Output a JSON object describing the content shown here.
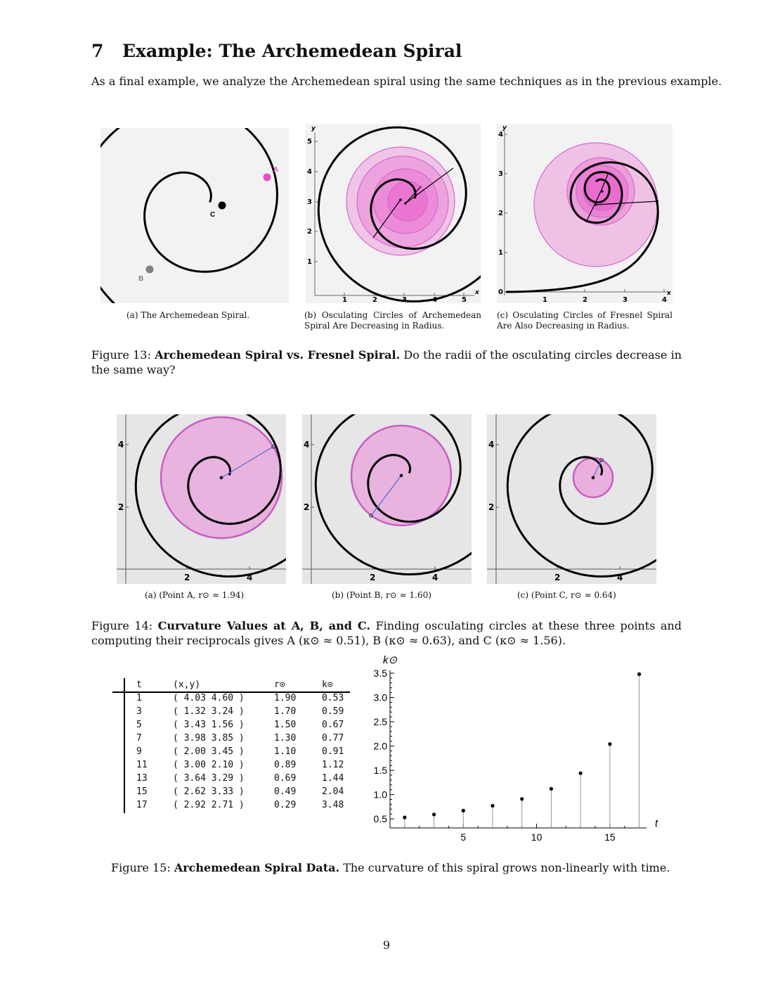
{
  "section": {
    "number": "7",
    "title": "Example: The Archemedean Spiral"
  },
  "intro": "As a final example, we analyze the Archemedean spiral using the same techniques as in the previous example.",
  "fig13": {
    "points": {
      "a": "A",
      "b": "B",
      "c": "C"
    },
    "sub_a": "(a) The Archemedean Spiral.",
    "sub_b": "(b) Osculating Circles of Archemedean Spiral Are Decreasing in Radius.",
    "sub_c": "(c) Osculating Circles of Fresnel Spiral Are Also Decreasing in Radius.",
    "label": "Figure 13:",
    "title": "Archemedean Spiral vs. Fresnel Spiral.",
    "text": "Do the radii of the osculating circles decrease in the same way?",
    "b_axes": {
      "x": "x",
      "y": "y",
      "xticks": [
        "1",
        "2",
        "3",
        "4",
        "5"
      ],
      "yticks": [
        "1",
        "2",
        "3",
        "4",
        "5"
      ]
    },
    "c_axes": {
      "x": "x",
      "y": "y",
      "xticks": [
        "1",
        "2",
        "3",
        "4"
      ],
      "yticks": [
        "0",
        "1",
        "2",
        "3",
        "4"
      ]
    }
  },
  "fig14": {
    "xticks": [
      "2",
      "4"
    ],
    "yticks": [
      "2",
      "4"
    ],
    "sub_a": "(a) (Point A, r⊙ ≈ 1.94)",
    "sub_b": "(b) (Point B, r⊙ ≈ 1.60)",
    "sub_c": "(c) (Point C, r⊙ ≈ 0.64)",
    "label": "Figure 14:",
    "title": "Curvature Values at A, B, and C.",
    "text": "Finding osculating circles at these three points and computing their reciprocals gives A (κ⊙ ≈ 0.51), B (κ⊙ ≈ 0.63), and C (κ⊙ ≈ 1.56)."
  },
  "table": {
    "headers": [
      "t",
      "(x,y)",
      "r⊙",
      "k⊙"
    ],
    "rows": [
      [
        "1",
        "( 4.03  4.60 )",
        "1.90",
        "0.53"
      ],
      [
        "3",
        "( 1.32  3.24 )",
        "1.70",
        "0.59"
      ],
      [
        "5",
        "( 3.43  1.56 )",
        "1.50",
        "0.67"
      ],
      [
        "7",
        "( 3.98  3.85 )",
        "1.30",
        "0.77"
      ],
      [
        "9",
        "( 2.00  3.45 )",
        "1.10",
        "0.91"
      ],
      [
        "11",
        "( 3.00  2.10 )",
        "0.89",
        "1.12"
      ],
      [
        "13",
        "( 3.64  3.29 )",
        "0.69",
        "1.44"
      ],
      [
        "15",
        "( 2.62  3.33 )",
        "0.49",
        "2.04"
      ],
      [
        "17",
        "( 2.92  2.71 )",
        "0.29",
        "3.48"
      ]
    ]
  },
  "chart_data": {
    "type": "scatter",
    "xlabel": "t",
    "ylabel": "k⊙",
    "x": [
      1,
      3,
      5,
      7,
      9,
      11,
      13,
      15,
      17
    ],
    "y": [
      0.53,
      0.59,
      0.67,
      0.77,
      0.91,
      1.12,
      1.44,
      2.04,
      3.48
    ],
    "xlim": [
      0,
      17.5
    ],
    "ylim": [
      0.5,
      3.5
    ],
    "xticks": [
      5,
      10,
      15
    ],
    "yticks": [
      0.5,
      1.0,
      1.5,
      2.0,
      2.5,
      3.0,
      3.5
    ],
    "ytick_labels": [
      "0.5",
      "1.0",
      "1.5",
      "2.0",
      "2.5",
      "3.0",
      "3.5"
    ],
    "style": "stem",
    "grid": false
  },
  "fig15": {
    "label": "Figure 15:",
    "title": "Archemedean Spiral Data.",
    "text": "The curvature of this spiral grows non-linearly with time."
  },
  "page_number": "9",
  "colors": {
    "magenta": "#e84fc8",
    "circle_fill": "#e9a6dc",
    "circle_stroke": "#c65ec4",
    "radius_line": "#5a6fd6",
    "point_b_gray": "#808080"
  }
}
